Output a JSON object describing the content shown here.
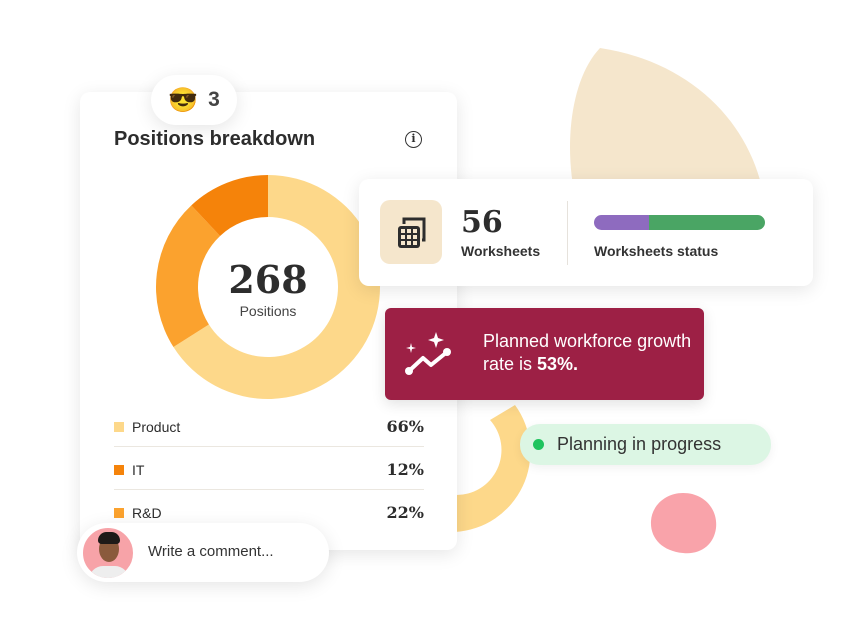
{
  "reaction": {
    "emoji": "😎",
    "count": "3"
  },
  "positions": {
    "title": "Positions breakdown",
    "total": "268",
    "total_label": "Positions",
    "items": [
      {
        "label": "Product",
        "percent": "66%",
        "value": 66,
        "color": "#fdd88a"
      },
      {
        "label": "IT",
        "percent": "12%",
        "value": 12,
        "color": "#f5830a"
      },
      {
        "label": "R&D",
        "percent": "22%",
        "value": 22,
        "color": "#fba22e"
      }
    ]
  },
  "worksheets": {
    "count": "56",
    "label": "Worksheets",
    "status_label": "Worksheets status",
    "status_split": [
      {
        "fraction": 0.32,
        "color": "#8e6bbf"
      },
      {
        "fraction": 0.68,
        "color": "#4aa564"
      }
    ]
  },
  "growth": {
    "text": "Planned workforce growth rate is ",
    "rate": "53%."
  },
  "status": {
    "label": "Planning in progress",
    "color": "#1fc45e"
  },
  "comment": {
    "placeholder": "Write a comment..."
  }
}
